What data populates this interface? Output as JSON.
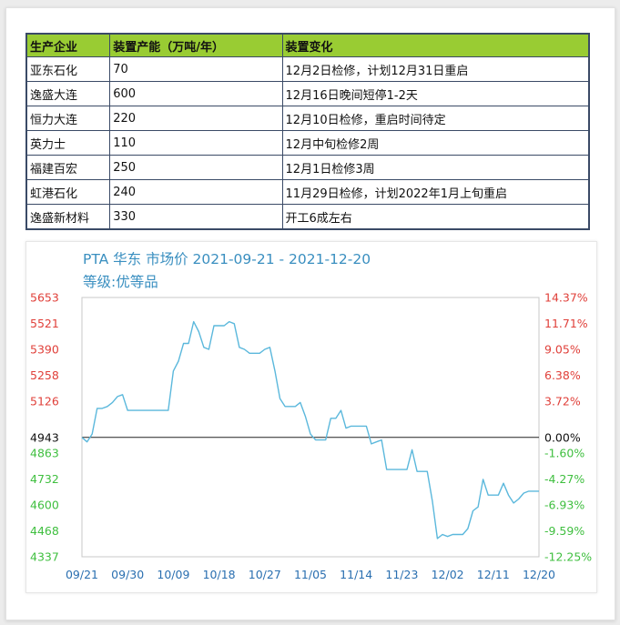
{
  "table": {
    "headers": [
      "生产企业",
      "装置产能（万吨/年）",
      "装置变化"
    ],
    "rows": [
      [
        "亚东石化",
        "70",
        "12月2日检修，计划12月31日重启"
      ],
      [
        "逸盛大连",
        "600",
        "12月16日晚间短停1-2天"
      ],
      [
        "恒力大连",
        "220",
        "12月10日检修，重启时间待定"
      ],
      [
        "英力士",
        "110",
        "12月中旬检修2周"
      ],
      [
        "福建百宏",
        "250",
        "12月1日检修3周"
      ],
      [
        "虹港石化",
        "240",
        "11月29日检修，计划2022年1月上旬重启"
      ],
      [
        "逸盛新材料",
        "330",
        "开工6成左右"
      ]
    ],
    "header_color": "#99cc33",
    "border_color": "#3a4a66"
  },
  "chart_data": {
    "type": "line",
    "title": "PTA 华东 市场价 2021-09-21 - 2021-12-20",
    "subtitle": "等级:优等品",
    "x_ticks": [
      "09/21",
      "09/30",
      "10/09",
      "10/18",
      "10/27",
      "11/05",
      "11/14",
      "11/23",
      "12/02",
      "12/11",
      "12/20"
    ],
    "y_ticks_left": [
      "5653",
      "5521",
      "5390",
      "5258",
      "5126",
      "4943",
      "4863",
      "4732",
      "4600",
      "4468",
      "4337"
    ],
    "y_ticks_right": [
      "14.37%",
      "11.71%",
      "9.05%",
      "6.38%",
      "3.72%",
      "0.00%",
      "-1.60%",
      "-4.27%",
      "-6.93%",
      "-9.59%",
      "-12.25%"
    ],
    "ylim": [
      4337,
      5653
    ],
    "baseline": 4943,
    "x_start": "2021-09-21",
    "x_end": "2021-12-20",
    "series": [
      {
        "values": [
          [
            "2021-09-21",
            4943
          ],
          [
            "2021-09-22",
            4920
          ],
          [
            "2021-09-23",
            4960
          ],
          [
            "2021-09-24",
            5090
          ],
          [
            "2021-09-25",
            5090
          ],
          [
            "2021-09-26",
            5100
          ],
          [
            "2021-09-27",
            5120
          ],
          [
            "2021-09-28",
            5150
          ],
          [
            "2021-09-29",
            5160
          ],
          [
            "2021-09-30",
            5080
          ],
          [
            "2021-10-01",
            5080
          ],
          [
            "2021-10-07",
            5080
          ],
          [
            "2021-10-08",
            5080
          ],
          [
            "2021-10-09",
            5280
          ],
          [
            "2021-10-10",
            5330
          ],
          [
            "2021-10-11",
            5420
          ],
          [
            "2021-10-12",
            5420
          ],
          [
            "2021-10-13",
            5530
          ],
          [
            "2021-10-14",
            5480
          ],
          [
            "2021-10-15",
            5400
          ],
          [
            "2021-10-16",
            5390
          ],
          [
            "2021-10-17",
            5510
          ],
          [
            "2021-10-18",
            5510
          ],
          [
            "2021-10-19",
            5510
          ],
          [
            "2021-10-20",
            5530
          ],
          [
            "2021-10-21",
            5520
          ],
          [
            "2021-10-22",
            5400
          ],
          [
            "2021-10-23",
            5390
          ],
          [
            "2021-10-24",
            5370
          ],
          [
            "2021-10-25",
            5370
          ],
          [
            "2021-10-26",
            5370
          ],
          [
            "2021-10-27",
            5390
          ],
          [
            "2021-10-28",
            5400
          ],
          [
            "2021-10-29",
            5280
          ],
          [
            "2021-10-30",
            5140
          ],
          [
            "2021-10-31",
            5100
          ],
          [
            "2021-11-01",
            5100
          ],
          [
            "2021-11-02",
            5100
          ],
          [
            "2021-11-03",
            5120
          ],
          [
            "2021-11-04",
            5050
          ],
          [
            "2021-11-05",
            4960
          ],
          [
            "2021-11-06",
            4930
          ],
          [
            "2021-11-07",
            4930
          ],
          [
            "2021-11-08",
            4930
          ],
          [
            "2021-11-09",
            5040
          ],
          [
            "2021-11-10",
            5040
          ],
          [
            "2021-11-11",
            5080
          ],
          [
            "2021-11-12",
            4990
          ],
          [
            "2021-11-13",
            5000
          ],
          [
            "2021-11-14",
            5000
          ],
          [
            "2021-11-15",
            5000
          ],
          [
            "2021-11-16",
            5000
          ],
          [
            "2021-11-17",
            4910
          ],
          [
            "2021-11-18",
            4920
          ],
          [
            "2021-11-19",
            4930
          ],
          [
            "2021-11-20",
            4780
          ],
          [
            "2021-11-21",
            4780
          ],
          [
            "2021-11-22",
            4780
          ],
          [
            "2021-11-23",
            4780
          ],
          [
            "2021-11-24",
            4780
          ],
          [
            "2021-11-25",
            4880
          ],
          [
            "2021-11-26",
            4770
          ],
          [
            "2021-11-27",
            4770
          ],
          [
            "2021-11-28",
            4770
          ],
          [
            "2021-11-29",
            4620
          ],
          [
            "2021-11-30",
            4430
          ],
          [
            "2021-12-01",
            4450
          ],
          [
            "2021-12-02",
            4440
          ],
          [
            "2021-12-03",
            4450
          ],
          [
            "2021-12-04",
            4450
          ],
          [
            "2021-12-05",
            4450
          ],
          [
            "2021-12-06",
            4480
          ],
          [
            "2021-12-07",
            4570
          ],
          [
            "2021-12-08",
            4590
          ],
          [
            "2021-12-09",
            4730
          ],
          [
            "2021-12-10",
            4650
          ],
          [
            "2021-12-11",
            4650
          ],
          [
            "2021-12-12",
            4650
          ],
          [
            "2021-12-13",
            4710
          ],
          [
            "2021-12-14",
            4650
          ],
          [
            "2021-12-15",
            4610
          ],
          [
            "2021-12-16",
            4630
          ],
          [
            "2021-12-17",
            4660
          ],
          [
            "2021-12-18",
            4670
          ],
          [
            "2021-12-19",
            4670
          ],
          [
            "2021-12-20",
            4670
          ]
        ]
      }
    ],
    "colors": {
      "line": "#5bb8dc",
      "up": "#e0403a",
      "down": "#3fbf3f",
      "baseline": "#222222",
      "axis_x": "#2a6fb0",
      "title": "#3a8fc0"
    },
    "grid": false
  }
}
